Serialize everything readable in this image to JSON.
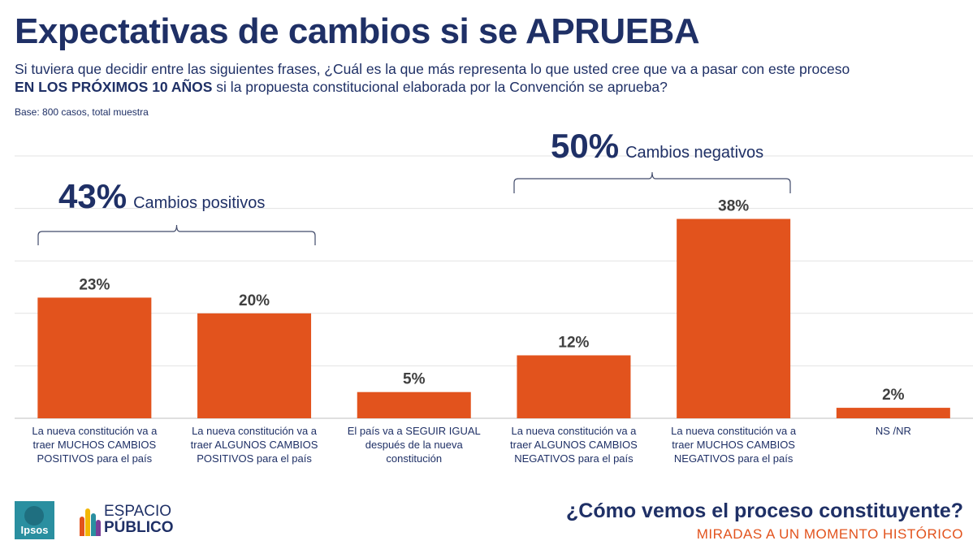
{
  "header": {
    "title": "Expectativas de cambios si se APRUEBA",
    "question_line1": "Si tuviera que decidir entre las siguientes frases, ¿Cuál es la que más representa lo que usted cree que va a pasar con este proceso",
    "question_bold": "EN LOS PRÓXIMOS 10 AÑOS",
    "question_rest": " si la propuesta constitucional elaborada por la Convención se aprueba?",
    "base": "Base: 800 casos, total muestra"
  },
  "groups": {
    "positive": {
      "pct": "43%",
      "label": "Cambios positivos"
    },
    "negative": {
      "pct": "50%",
      "label": "Cambios negativos"
    }
  },
  "chart_data": {
    "type": "bar",
    "categories": [
      "La nueva constitución va a traer MUCHOS CAMBIOS POSITIVOS para el país",
      "La nueva constitución va a traer ALGUNOS CAMBIOS POSITIVOS para el país",
      "El país va a SEGUIR IGUAL después de la nueva constitución",
      "La nueva constitución va a traer ALGUNOS CAMBIOS NEGATIVOS para el país",
      "La nueva constitución va a traer MUCHOS CAMBIOS NEGATIVOS para el país",
      "NS /NR"
    ],
    "values": [
      23,
      20,
      5,
      12,
      38,
      2
    ],
    "value_labels": [
      "23%",
      "20%",
      "5%",
      "12%",
      "38%",
      "2%"
    ],
    "bar_color": "#e2531d",
    "ylim": [
      0,
      50
    ],
    "grid": true
  },
  "footer": {
    "title": "¿Cómo vemos el proceso constituyente?",
    "subtitle": "MIRADAS A UN MOMENTO HISTÓRICO",
    "logo_ipsos": "Ipsos",
    "logo_ep_line1": "ESPACIO",
    "logo_ep_line2": "PÚBLICO"
  }
}
